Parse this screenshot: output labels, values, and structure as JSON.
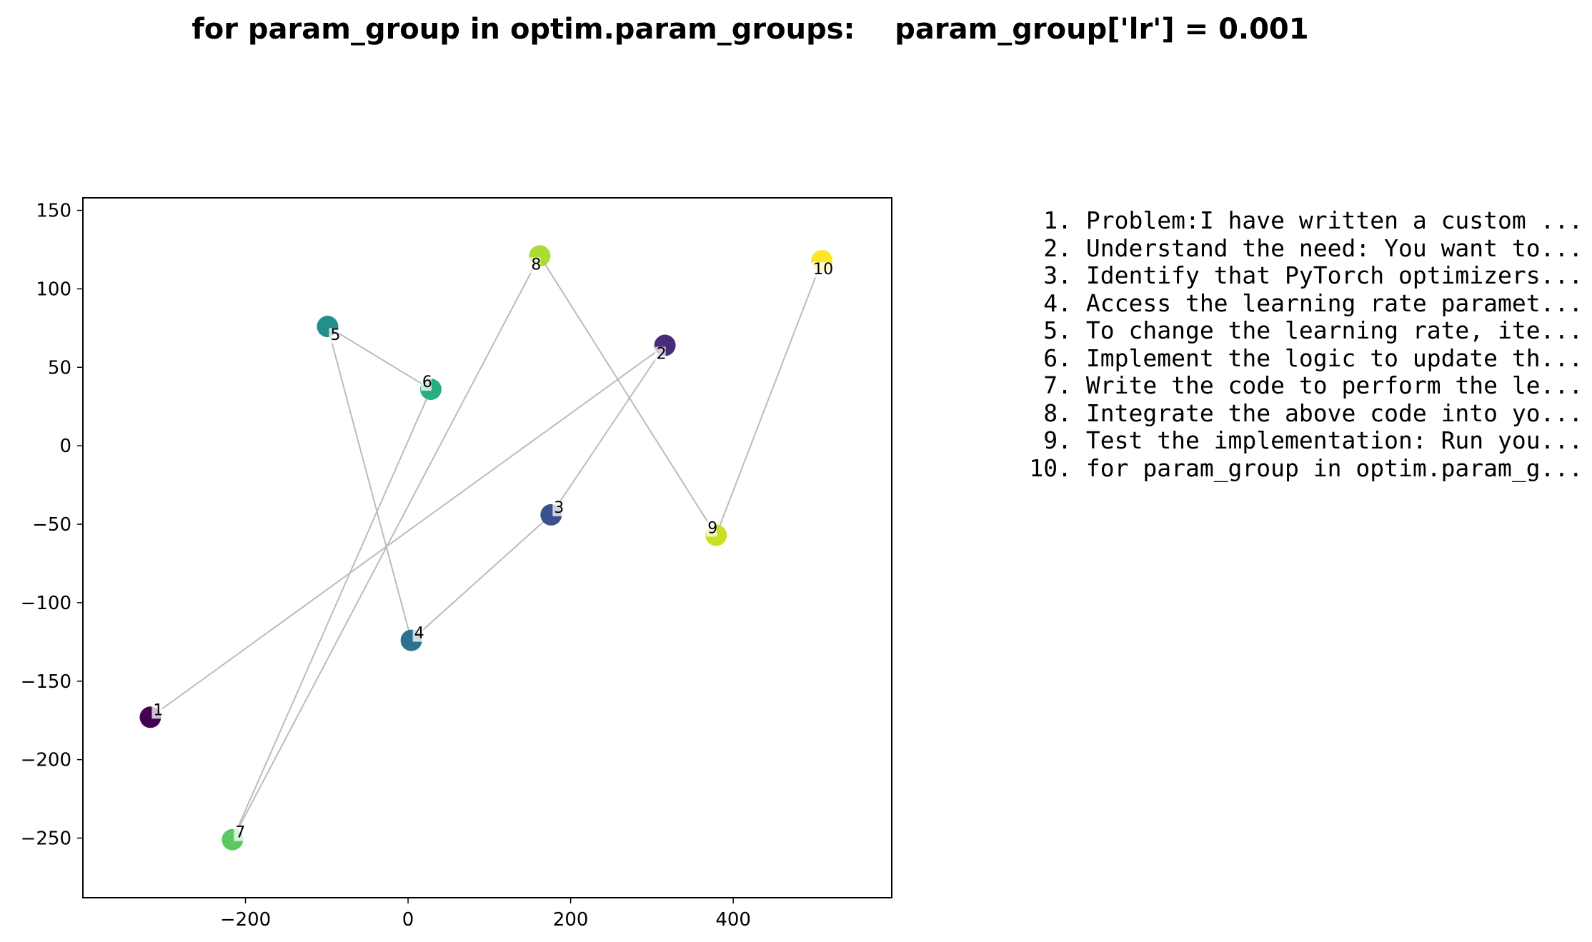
{
  "chart_data": {
    "type": "scatter",
    "title": "for param_group in optim.param_groups:    param_group['lr'] = 0.001",
    "xlabel": "",
    "ylabel": "",
    "xlim": [
      -400,
      595
    ],
    "ylim": [
      -288,
      158
    ],
    "xticks": [
      -200,
      0,
      200,
      400
    ],
    "xtick_labels": [
      "−200",
      "0",
      "200",
      "400"
    ],
    "yticks": [
      150,
      100,
      50,
      0,
      -50,
      -100,
      -150,
      -200,
      -250
    ],
    "ytick_labels": [
      "150",
      "100",
      "50",
      "0",
      "−50",
      "−100",
      "−150",
      "−200",
      "−250"
    ],
    "grid": false,
    "connect_in_order": true,
    "line_color": "#bbbbbb",
    "colormap": "viridis",
    "points": [
      {
        "label": "1",
        "x": -317,
        "y": -173,
        "color": "#440154"
      },
      {
        "label": "2",
        "x": 316,
        "y": 64,
        "color": "#472c7a"
      },
      {
        "label": "3",
        "x": 176,
        "y": -44,
        "color": "#3b518b"
      },
      {
        "label": "4",
        "x": 4,
        "y": -124,
        "color": "#2c718e"
      },
      {
        "label": "5",
        "x": -99,
        "y": 76,
        "color": "#21908d"
      },
      {
        "label": "6",
        "x": 28,
        "y": 36,
        "color": "#27ad81"
      },
      {
        "label": "7",
        "x": -216,
        "y": -251,
        "color": "#5cc863"
      },
      {
        "label": "8",
        "x": 162,
        "y": 121,
        "color": "#aadc32"
      },
      {
        "label": "9",
        "x": 379,
        "y": -57,
        "color": "#c8e020"
      },
      {
        "label": "10",
        "x": 509,
        "y": 118,
        "color": "#fde725"
      }
    ]
  },
  "steps": [
    {
      "num": "1.",
      "text": "Problem:I have written a custom ..."
    },
    {
      "num": "2.",
      "text": "Understand the need: You want to..."
    },
    {
      "num": "3.",
      "text": "Identify that PyTorch optimizers..."
    },
    {
      "num": "4.",
      "text": "Access the learning rate paramet..."
    },
    {
      "num": "5.",
      "text": "To change the learning rate, ite..."
    },
    {
      "num": "6.",
      "text": "Implement the logic to update th..."
    },
    {
      "num": "7.",
      "text": "Write the code to perform the le..."
    },
    {
      "num": "8.",
      "text": "Integrate the above code into yo..."
    },
    {
      "num": "9.",
      "text": "Test the implementation: Run you..."
    },
    {
      "num": "10.",
      "text": "for param_group in optim.param_g..."
    }
  ]
}
